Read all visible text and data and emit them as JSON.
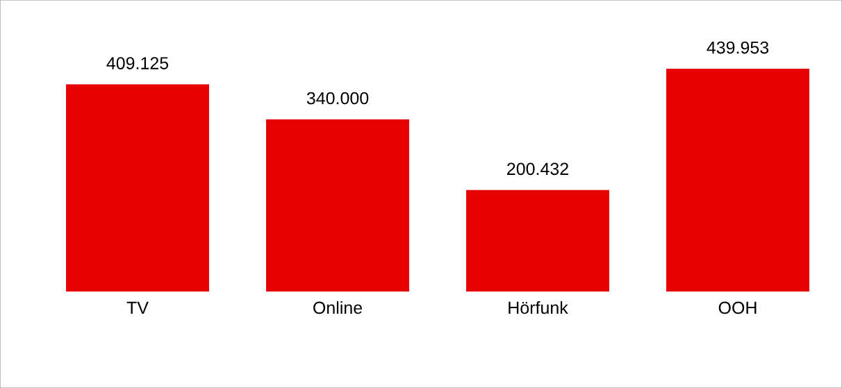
{
  "chart_data": {
    "type": "bar",
    "categories": [
      "TV",
      "Online",
      "Hörfunk",
      "OOH"
    ],
    "values": [
      409125,
      340000,
      200432,
      439953
    ],
    "value_labels": [
      "409.125",
      "340.000",
      "200.432",
      "439.953"
    ],
    "color": "#e60000",
    "grid": false,
    "legend": false
  }
}
